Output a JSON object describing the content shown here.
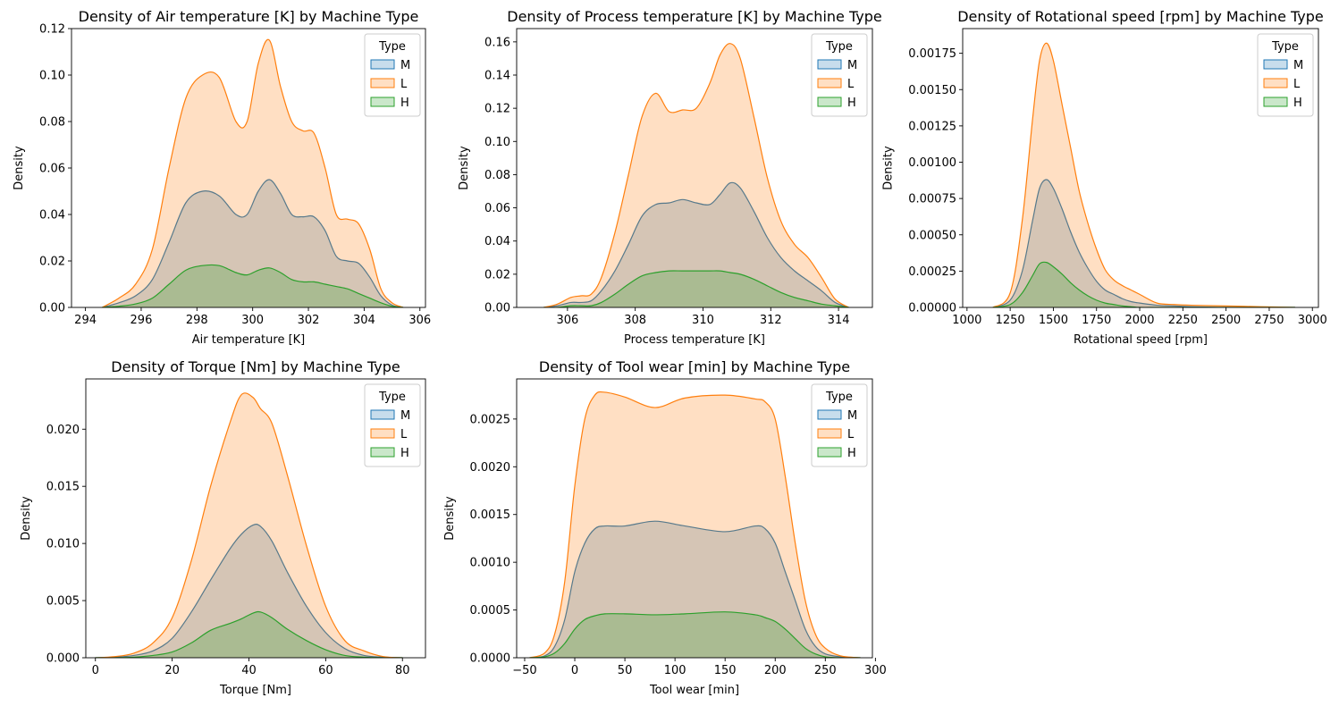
{
  "colors": {
    "M": "#1f77b4",
    "L": "#ff7f0e",
    "H": "#2ca02c"
  },
  "chart_data": [
    {
      "type": "area",
      "title": "Density of Air temperature [K] by Machine Type",
      "xlabel": "Air temperature [K]",
      "ylabel": "Density",
      "xlim": [
        293.5,
        306.2
      ],
      "ylim": [
        0,
        0.12
      ],
      "xticks": [
        294,
        296,
        298,
        300,
        302,
        304,
        306
      ],
      "xtick_labels": [
        "294",
        "296",
        "298",
        "300",
        "302",
        "304",
        "306"
      ],
      "yticks": [
        0,
        0.02,
        0.04,
        0.06,
        0.08,
        0.1,
        0.12
      ],
      "ytick_labels": [
        "0.00",
        "0.02",
        "0.04",
        "0.06",
        "0.08",
        "0.10",
        "0.12"
      ],
      "legend": {
        "title": "Type",
        "entries": [
          "M",
          "L",
          "H"
        ],
        "position": "top-right"
      },
      "series": [
        {
          "name": "M",
          "x": [
            294.6,
            295.2,
            295.8,
            296.4,
            297.0,
            297.6,
            298.2,
            298.8,
            299.4,
            299.8,
            300.2,
            300.6,
            301.0,
            301.4,
            301.8,
            302.2,
            302.6,
            303.0,
            303.4,
            303.8,
            304.2,
            304.6,
            305.0,
            305.4
          ],
          "y": [
            0.0,
            0.002,
            0.005,
            0.012,
            0.028,
            0.045,
            0.05,
            0.048,
            0.04,
            0.04,
            0.05,
            0.055,
            0.049,
            0.04,
            0.039,
            0.039,
            0.033,
            0.022,
            0.02,
            0.019,
            0.013,
            0.005,
            0.001,
            0.0
          ]
        },
        {
          "name": "L",
          "x": [
            294.6,
            295.2,
            295.8,
            296.4,
            297.0,
            297.6,
            298.2,
            298.8,
            299.4,
            299.8,
            300.2,
            300.6,
            301.0,
            301.4,
            301.8,
            302.2,
            302.6,
            303.0,
            303.4,
            303.8,
            304.2,
            304.6,
            305.0,
            305.4
          ],
          "y": [
            0.0,
            0.004,
            0.01,
            0.025,
            0.06,
            0.09,
            0.1,
            0.099,
            0.08,
            0.08,
            0.105,
            0.115,
            0.095,
            0.08,
            0.076,
            0.075,
            0.06,
            0.04,
            0.038,
            0.036,
            0.025,
            0.008,
            0.002,
            0.0
          ]
        },
        {
          "name": "H",
          "x": [
            294.6,
            295.2,
            295.8,
            296.4,
            297.0,
            297.6,
            298.2,
            298.8,
            299.4,
            299.8,
            300.2,
            300.6,
            301.0,
            301.4,
            301.8,
            302.2,
            302.6,
            303.0,
            303.4,
            303.8,
            304.2,
            304.6,
            305.0,
            305.4
          ],
          "y": [
            0.0,
            0.0005,
            0.0015,
            0.004,
            0.01,
            0.016,
            0.018,
            0.018,
            0.015,
            0.014,
            0.016,
            0.017,
            0.015,
            0.012,
            0.011,
            0.011,
            0.01,
            0.009,
            0.008,
            0.006,
            0.004,
            0.002,
            0.0005,
            0.0
          ]
        }
      ]
    },
    {
      "type": "area",
      "title": "Density of Process temperature [K] by Machine Type",
      "xlabel": "Process temperature [K]",
      "ylabel": "Density",
      "xlim": [
        304.5,
        315.0
      ],
      "ylim": [
        0,
        0.168
      ],
      "xticks": [
        306,
        308,
        310,
        312,
        314
      ],
      "xtick_labels": [
        "306",
        "308",
        "310",
        "312",
        "314"
      ],
      "yticks": [
        0,
        0.02,
        0.04,
        0.06,
        0.08,
        0.1,
        0.12,
        0.14,
        0.16
      ],
      "ytick_labels": [
        "0.00",
        "0.02",
        "0.04",
        "0.06",
        "0.08",
        "0.10",
        "0.12",
        "0.14",
        "0.16"
      ],
      "legend": {
        "title": "Type",
        "entries": [
          "M",
          "L",
          "H"
        ],
        "position": "top-right"
      },
      "series": [
        {
          "name": "M",
          "x": [
            305.3,
            305.7,
            306.1,
            306.4,
            306.7,
            307.0,
            307.4,
            307.8,
            308.2,
            308.6,
            309.0,
            309.4,
            309.8,
            310.2,
            310.5,
            310.8,
            311.1,
            311.5,
            311.9,
            312.3,
            312.7,
            313.1,
            313.5,
            313.9,
            314.3
          ],
          "y": [
            0.0,
            0.001,
            0.003,
            0.003,
            0.004,
            0.01,
            0.022,
            0.038,
            0.055,
            0.062,
            0.063,
            0.065,
            0.063,
            0.062,
            0.068,
            0.075,
            0.072,
            0.058,
            0.042,
            0.03,
            0.022,
            0.016,
            0.01,
            0.003,
            0.0
          ]
        },
        {
          "name": "L",
          "x": [
            305.3,
            305.7,
            306.1,
            306.4,
            306.7,
            307.0,
            307.4,
            307.8,
            308.2,
            308.6,
            309.0,
            309.4,
            309.8,
            310.2,
            310.5,
            310.8,
            311.1,
            311.5,
            311.9,
            312.3,
            312.7,
            313.1,
            313.5,
            313.9,
            314.3
          ],
          "y": [
            0.0,
            0.002,
            0.006,
            0.007,
            0.008,
            0.018,
            0.045,
            0.08,
            0.115,
            0.129,
            0.118,
            0.119,
            0.12,
            0.135,
            0.152,
            0.159,
            0.15,
            0.115,
            0.078,
            0.052,
            0.038,
            0.03,
            0.018,
            0.005,
            0.0
          ]
        },
        {
          "name": "H",
          "x": [
            305.3,
            305.7,
            306.1,
            306.4,
            306.7,
            307.0,
            307.4,
            307.8,
            308.2,
            308.6,
            309.0,
            309.4,
            309.8,
            310.2,
            310.5,
            310.8,
            311.1,
            311.5,
            311.9,
            312.3,
            312.7,
            313.1,
            313.5,
            313.9,
            314.3
          ],
          "y": [
            0.0,
            0.0,
            0.001,
            0.001,
            0.001,
            0.003,
            0.008,
            0.014,
            0.019,
            0.021,
            0.022,
            0.022,
            0.022,
            0.022,
            0.022,
            0.021,
            0.02,
            0.017,
            0.013,
            0.009,
            0.006,
            0.004,
            0.002,
            0.001,
            0.0
          ]
        }
      ]
    },
    {
      "type": "area",
      "title": "Density of Rotational speed [rpm] by Machine Type",
      "xlabel": "Rotational speed [rpm]",
      "ylabel": "Density",
      "xlim": [
        975,
        3035
      ],
      "ylim": [
        0,
        0.00192
      ],
      "xticks": [
        1000,
        1250,
        1500,
        1750,
        2000,
        2250,
        2500,
        2750,
        3000
      ],
      "xtick_labels": [
        "1000",
        "1250",
        "1500",
        "1750",
        "2000",
        "2250",
        "2500",
        "2750",
        "3000"
      ],
      "yticks": [
        0,
        0.00025,
        0.0005,
        0.00075,
        0.001,
        0.00125,
        0.0015,
        0.00175
      ],
      "ytick_labels": [
        "0.00000",
        "0.00025",
        "0.00050",
        "0.00075",
        "0.00100",
        "0.00125",
        "0.00150",
        "0.00175"
      ],
      "legend": {
        "title": "Type",
        "entries": [
          "M",
          "L",
          "H"
        ],
        "position": "top-right"
      },
      "series": [
        {
          "name": "M",
          "x": [
            1150,
            1250,
            1320,
            1380,
            1420,
            1460,
            1500,
            1550,
            1600,
            1650,
            1700,
            1750,
            1800,
            1850,
            1900,
            1950,
            2000,
            2100,
            2200,
            2300,
            2500,
            2700,
            2900
          ],
          "y": [
            0.0,
            5e-05,
            0.00025,
            0.0006,
            0.00082,
            0.00088,
            0.00082,
            0.00068,
            0.00052,
            0.00038,
            0.00027,
            0.00018,
            0.00012,
            9e-05,
            6e-05,
            4e-05,
            3e-05,
            1.5e-05,
            1e-05,
            5e-06,
            0.0,
            0.0,
            0.0
          ]
        },
        {
          "name": "L",
          "x": [
            1150,
            1250,
            1320,
            1380,
            1420,
            1460,
            1500,
            1550,
            1600,
            1650,
            1700,
            1750,
            1800,
            1850,
            1900,
            1950,
            2000,
            2100,
            2200,
            2300,
            2500,
            2700,
            2900
          ],
          "y": [
            0.0,
            0.0001,
            0.0006,
            0.0013,
            0.0017,
            0.00182,
            0.0017,
            0.0014,
            0.0011,
            0.0008,
            0.00058,
            0.0004,
            0.00026,
            0.00019,
            0.00015,
            0.00012,
            9e-05,
            3e-05,
            2e-05,
            1.5e-05,
            1e-05,
            5e-06,
            0.0
          ]
        },
        {
          "name": "H",
          "x": [
            1150,
            1250,
            1320,
            1380,
            1420,
            1460,
            1500,
            1550,
            1600,
            1650,
            1700,
            1750,
            1800,
            1850,
            1900,
            1950,
            2000,
            2100,
            2200,
            2300,
            2500,
            2700,
            2900
          ],
          "y": [
            0.0,
            2e-05,
            0.0001,
            0.00022,
            0.0003,
            0.00031,
            0.00028,
            0.00023,
            0.00017,
            0.00012,
            8e-05,
            5e-05,
            3e-05,
            2e-05,
            1e-05,
            5e-06,
            0.0,
            0.0,
            0.0,
            0.0,
            0.0,
            0.0,
            0.0
          ]
        }
      ]
    },
    {
      "type": "area",
      "title": "Density of Torque [Nm] by Machine Type",
      "xlabel": "Torque [Nm]",
      "ylabel": "Density",
      "xlim": [
        -2.5,
        86
      ],
      "ylim": [
        0,
        0.0244
      ],
      "xticks": [
        0,
        20,
        40,
        60,
        80
      ],
      "xtick_labels": [
        "0",
        "20",
        "40",
        "60",
        "80"
      ],
      "yticks": [
        0,
        0.005,
        0.01,
        0.015,
        0.02
      ],
      "ytick_labels": [
        "0.000",
        "0.005",
        "0.010",
        "0.015",
        "0.020"
      ],
      "legend": {
        "title": "Type",
        "entries": [
          "M",
          "L",
          "H"
        ],
        "position": "top-right"
      },
      "series": [
        {
          "name": "M",
          "x": [
            0,
            5,
            10,
            15,
            20,
            25,
            30,
            35,
            38,
            41,
            43,
            46,
            50,
            55,
            60,
            65,
            70,
            75,
            80
          ],
          "y": [
            0.0,
            5e-05,
            0.0002,
            0.0006,
            0.0017,
            0.004,
            0.0068,
            0.0095,
            0.0108,
            0.0116,
            0.0115,
            0.0102,
            0.0075,
            0.0045,
            0.0022,
            0.0008,
            0.0002,
            5e-05,
            0.0
          ]
        },
        {
          "name": "L",
          "x": [
            0,
            5,
            10,
            15,
            20,
            25,
            30,
            35,
            38,
            41,
            43,
            46,
            50,
            55,
            60,
            65,
            70,
            75,
            80
          ],
          "y": [
            0.0,
            0.0001,
            0.0004,
            0.0013,
            0.0035,
            0.0085,
            0.015,
            0.0205,
            0.023,
            0.0228,
            0.0218,
            0.0205,
            0.016,
            0.0098,
            0.0045,
            0.0015,
            0.0006,
            0.0001,
            0.0
          ]
        },
        {
          "name": "H",
          "x": [
            0,
            5,
            10,
            15,
            20,
            25,
            30,
            35,
            38,
            41,
            43,
            46,
            50,
            55,
            60,
            65,
            70,
            75,
            80
          ],
          "y": [
            0.0,
            0.0,
            5e-05,
            0.0002,
            0.0005,
            0.0013,
            0.0024,
            0.003,
            0.0034,
            0.0039,
            0.004,
            0.0035,
            0.0025,
            0.0015,
            0.0007,
            0.0002,
            5e-05,
            0.0,
            0.0
          ]
        }
      ]
    },
    {
      "type": "area",
      "title": "Density of Tool wear [min] by Machine Type",
      "xlabel": "Tool wear [min]",
      "ylabel": "Density",
      "xlim": [
        -58,
        297
      ],
      "ylim": [
        0,
        0.00292
      ],
      "xticks": [
        -50,
        0,
        50,
        100,
        150,
        200,
        250,
        300
      ],
      "xtick_labels": [
        "−50",
        "0",
        "50",
        "100",
        "150",
        "200",
        "250",
        "300"
      ],
      "yticks": [
        0,
        0.0005,
        0.001,
        0.0015,
        0.002,
        0.0025
      ],
      "ytick_labels": [
        "0.0000",
        "0.0005",
        "0.0010",
        "0.0015",
        "0.0020",
        "0.0025"
      ],
      "legend": {
        "title": "Type",
        "entries": [
          "M",
          "L",
          "H"
        ],
        "position": "top-right"
      },
      "series": [
        {
          "name": "M",
          "x": [
            -45,
            -30,
            -20,
            -10,
            0,
            10,
            20,
            30,
            50,
            80,
            110,
            150,
            180,
            190,
            200,
            210,
            220,
            230,
            240,
            250,
            265,
            285
          ],
          "y": [
            0.0,
            2e-05,
            0.00012,
            0.0004,
            0.0009,
            0.0012,
            0.00135,
            0.00138,
            0.00138,
            0.00143,
            0.00138,
            0.00132,
            0.00138,
            0.00135,
            0.0012,
            0.0009,
            0.0006,
            0.0003,
            0.00012,
            4e-05,
            1e-05,
            0.0
          ]
        },
        {
          "name": "L",
          "x": [
            -45,
            -30,
            -20,
            -10,
            0,
            10,
            20,
            30,
            50,
            80,
            110,
            150,
            180,
            190,
            200,
            210,
            220,
            230,
            240,
            250,
            265,
            285
          ],
          "y": [
            0.0,
            5e-05,
            0.00025,
            0.0008,
            0.0018,
            0.0025,
            0.00275,
            0.00278,
            0.00273,
            0.00262,
            0.00272,
            0.00275,
            0.00271,
            0.00268,
            0.0025,
            0.0019,
            0.0012,
            0.0006,
            0.00025,
            0.0001,
            2e-05,
            0.0
          ]
        },
        {
          "name": "H",
          "x": [
            -45,
            -30,
            -20,
            -10,
            0,
            10,
            20,
            30,
            50,
            80,
            110,
            150,
            180,
            190,
            200,
            210,
            220,
            230,
            240,
            250,
            265,
            285
          ],
          "y": [
            0.0,
            1e-05,
            5e-05,
            0.00015,
            0.0003,
            0.0004,
            0.00044,
            0.00046,
            0.00046,
            0.00045,
            0.00046,
            0.00048,
            0.00045,
            0.00042,
            0.00038,
            0.0003,
            0.0002,
            0.0001,
            4e-05,
            1e-05,
            0.0,
            0.0
          ]
        }
      ]
    }
  ]
}
